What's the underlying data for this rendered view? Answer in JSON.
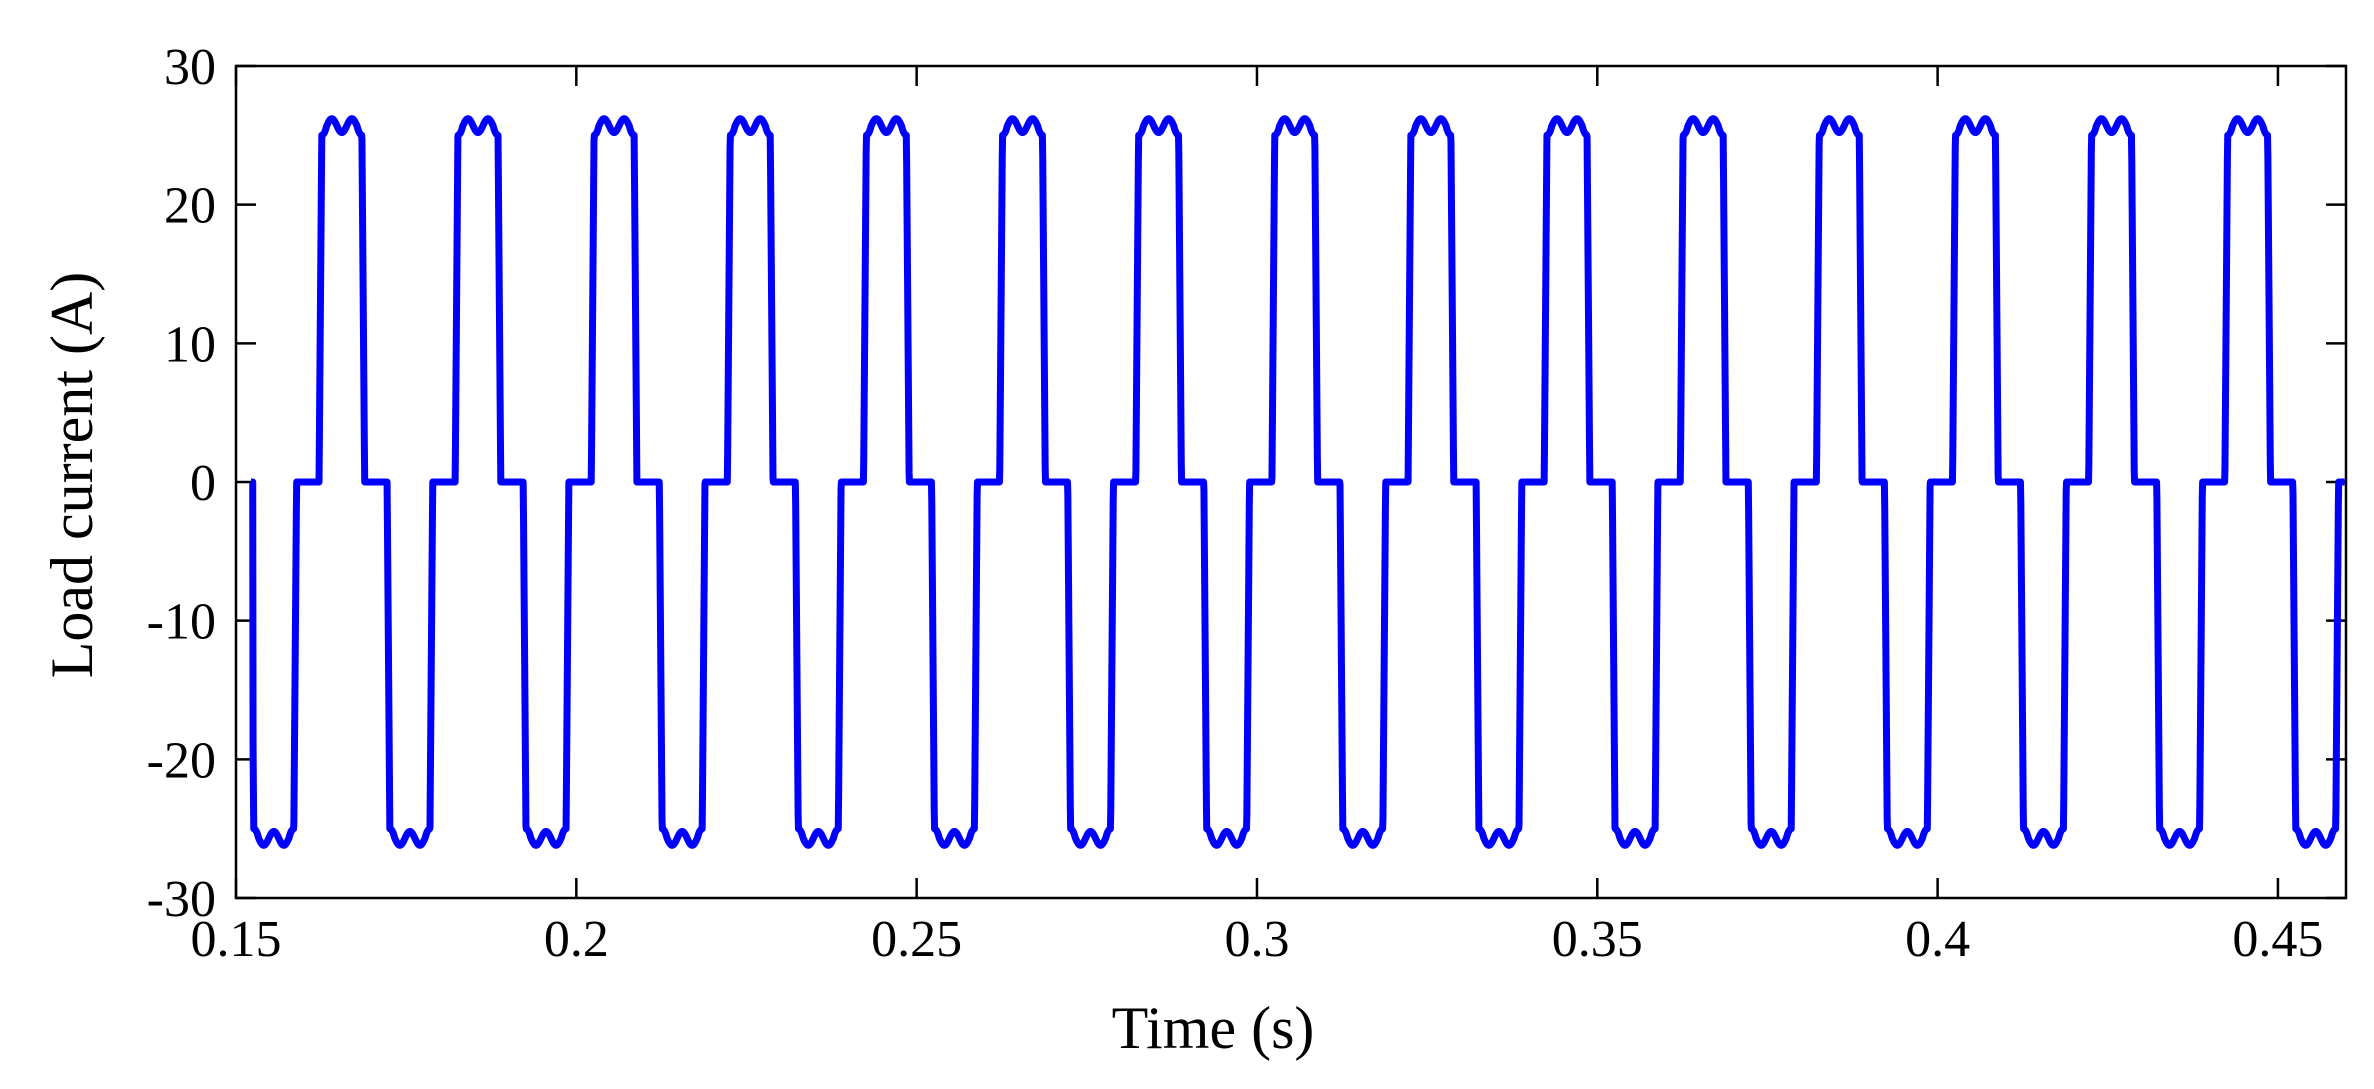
{
  "chart_data": {
    "type": "line",
    "title": "",
    "xlabel": "Time (s)",
    "ylabel": "Load current (A)",
    "xlim": [
      0.15,
      0.46
    ],
    "ylim": [
      -30,
      30
    ],
    "xticks": [
      0.15,
      0.2,
      0.25,
      0.3,
      0.35,
      0.4,
      0.45
    ],
    "xtick_labels": [
      "0.15",
      "0.2",
      "0.25",
      "0.3",
      "0.35",
      "0.4",
      "0.45"
    ],
    "yticks": [
      30,
      20,
      10,
      0,
      -10,
      -20,
      -30
    ],
    "ytick_labels": [
      "30",
      "20",
      "10",
      "0",
      "-10",
      "-20",
      "-30"
    ],
    "grid": false,
    "legend": "none",
    "series": [
      {
        "color": "#0000ff",
        "period": 0.02,
        "first_positive_pulse_start": 0.1622,
        "first_negative_pulse_start": 0.1522,
        "pulse_duration": 0.0067,
        "plateau_level": 25,
        "peak_level": 26.2,
        "dip_level": 25.2,
        "zero_level": 0
      }
    ]
  }
}
